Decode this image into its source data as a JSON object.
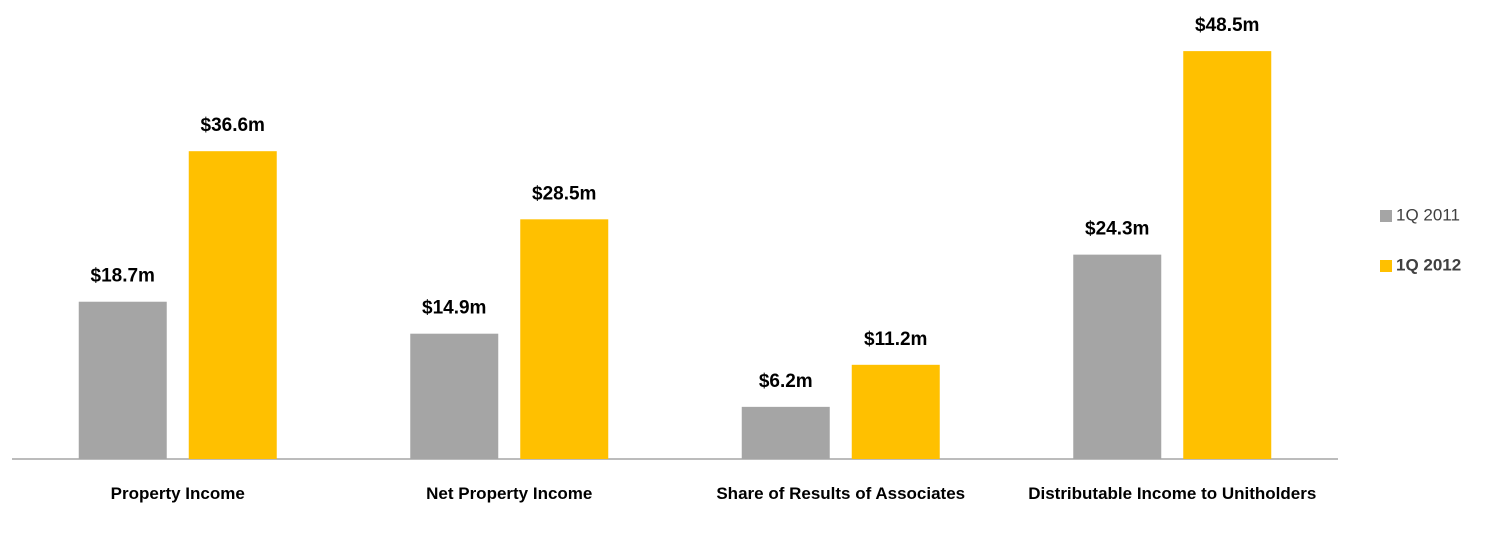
{
  "chart_data": {
    "type": "bar",
    "categories": [
      "Property Income",
      "Net Property Income",
      "Share of Results of Associates",
      "Distributable Income to Unitholders"
    ],
    "series": [
      {
        "name": "1Q 2011",
        "color": "#a5a5a5",
        "values": [
          18.7,
          14.9,
          6.2,
          24.3
        ],
        "value_labels": [
          "$18.7m",
          "$14.9m",
          "$6.2m",
          "$24.3m"
        ]
      },
      {
        "name": "1Q 2012",
        "color": "#ffc000",
        "values": [
          36.6,
          28.5,
          11.2,
          48.5
        ],
        "value_labels": [
          "$36.6m",
          "$28.5m",
          "$11.2m",
          "$48.5m"
        ]
      }
    ],
    "legend": "right"
  }
}
